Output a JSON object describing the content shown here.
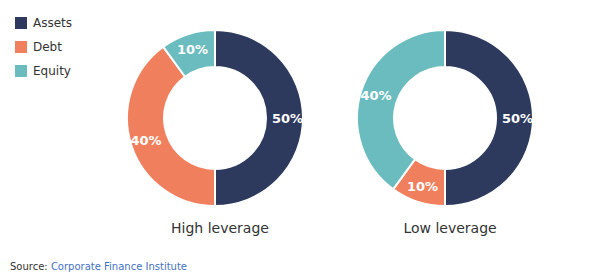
{
  "chart_data": [
    {
      "type": "pie",
      "title": "High leverage",
      "categories": [
        "Assets",
        "Debt",
        "Equity"
      ],
      "values": [
        50,
        40,
        10
      ],
      "value_labels": [
        "50%",
        "40%",
        "10%"
      ],
      "colors": [
        "#2d3a5e",
        "#f07f5e",
        "#6bbcbe"
      ],
      "data_labels": true,
      "legend": "upper left",
      "annotations": [
        {
          "text": "Source: ",
          "color": "#333333"
        },
        {
          "text": "Corporate Finance Institute",
          "color": "#4472c4"
        }
      ]
    },
    {
      "type": "pie",
      "title": "Low leverage",
      "categories": [
        "Assets",
        "Debt",
        "Equity"
      ],
      "values": [
        50,
        10,
        40
      ],
      "value_labels": [
        "50%",
        "10%",
        "40%"
      ],
      "colors": [
        "#2d3a5e",
        "#f07f5e",
        "#6bbcbe"
      ],
      "data_labels": true,
      "legend": "upper left"
    }
  ]
}
